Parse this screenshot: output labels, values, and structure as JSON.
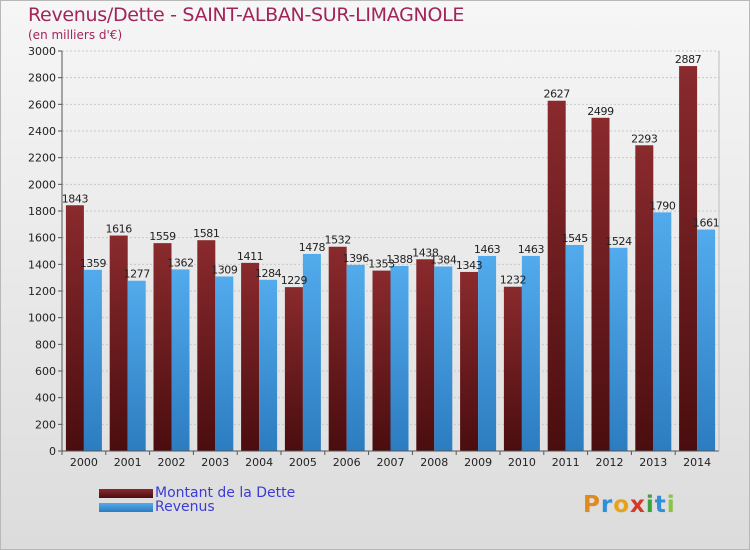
{
  "title": "Revenus/Dette - SAINT-ALBAN-SUR-LIMAGNOLE",
  "subtitle": "(en milliers d'€)",
  "legend": {
    "debt_label": "Montant de la Dette",
    "revenue_label": "Revenus"
  },
  "logo": {
    "text": "Proxiti"
  },
  "colors": {
    "debt": "#7d2326",
    "debt_dark": "#4a0d0f",
    "revenue": "#4aa3e6",
    "revenue_dark": "#2c7cc0",
    "title": "#a1255a",
    "legend_text": "#3b3bd6"
  },
  "chart_data": {
    "type": "bar",
    "title": "Revenus/Dette - SAINT-ALBAN-SUR-LIMAGNOLE",
    "ylabel": "(en milliers d'€)",
    "ylim": [
      0,
      3000
    ],
    "yticks": [
      0,
      200,
      400,
      600,
      800,
      1000,
      1200,
      1400,
      1600,
      1800,
      2000,
      2200,
      2400,
      2600,
      2800,
      3000
    ],
    "grid": true,
    "categories": [
      "2000",
      "2001",
      "2002",
      "2003",
      "2004",
      "2005",
      "2006",
      "2007",
      "2008",
      "2009",
      "2010",
      "2011",
      "2012",
      "2013",
      "2014"
    ],
    "series": [
      {
        "name": "Montant de la Dette",
        "values": [
          1843,
          1616,
          1559,
          1581,
          1411,
          1229,
          1532,
          1353,
          1438,
          1343,
          1232,
          2627,
          2499,
          2293,
          2887
        ],
        "labels": [
          "1843",
          "1616",
          "1559",
          "1581",
          "1411",
          "1229",
          "1532",
          "1353",
          "1438",
          "1343",
          "1232",
          "2627",
          "2499",
          "2293",
          "2887"
        ]
      },
      {
        "name": "Revenus",
        "values": [
          1359,
          1277,
          1362,
          1309,
          1284,
          1478,
          1396,
          1388,
          1384,
          1463,
          1463,
          1545,
          1524,
          1790,
          1661
        ],
        "labels": [
          "1359",
          "1277",
          "1362",
          "1309",
          "1284",
          "1478",
          "1396",
          "1388",
          "1384",
          "1463",
          "1463",
          "1545",
          "1524",
          "1790",
          "1661"
        ]
      }
    ]
  }
}
